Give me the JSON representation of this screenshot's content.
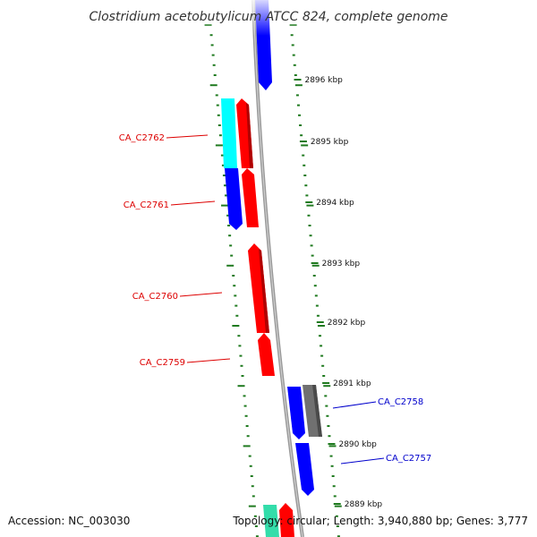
{
  "title": "Clostridium acetobutylicum ATCC 824, complete genome",
  "footer": {
    "accession": "Accession: NC_003030",
    "topology": "Topology: circular; Length: 3,940,880 bp; Genes: 3,777"
  },
  "colors": {
    "forward_gene": "#ff0000",
    "reverse_gene": "#0000ff",
    "cyan_gene": "#00ffff",
    "gray_gene": "#707070",
    "teal_gene": "#33ddaa",
    "backbone": "#a0a0a0",
    "tick": "#1f7a1f",
    "forward_label": "#dd0000",
    "reverse_label": "#0000cc"
  },
  "kbp_labels": [
    {
      "text": "2896 kbp"
    },
    {
      "text": "2895 kbp"
    },
    {
      "text": "2894 kbp"
    },
    {
      "text": "2893 kbp"
    },
    {
      "text": "2892 kbp"
    },
    {
      "text": "2891 kbp"
    },
    {
      "text": "2890 kbp"
    },
    {
      "text": "2889 kbp"
    }
  ],
  "gene_labels": [
    {
      "text": "CA_C2762",
      "strand": "forward"
    },
    {
      "text": "CA_C2761",
      "strand": "forward"
    },
    {
      "text": "CA_C2760",
      "strand": "forward"
    },
    {
      "text": "CA_C2759",
      "strand": "forward"
    },
    {
      "text": "CA_C2758",
      "strand": "reverse"
    },
    {
      "text": "CA_C2757",
      "strand": "reverse"
    }
  ]
}
